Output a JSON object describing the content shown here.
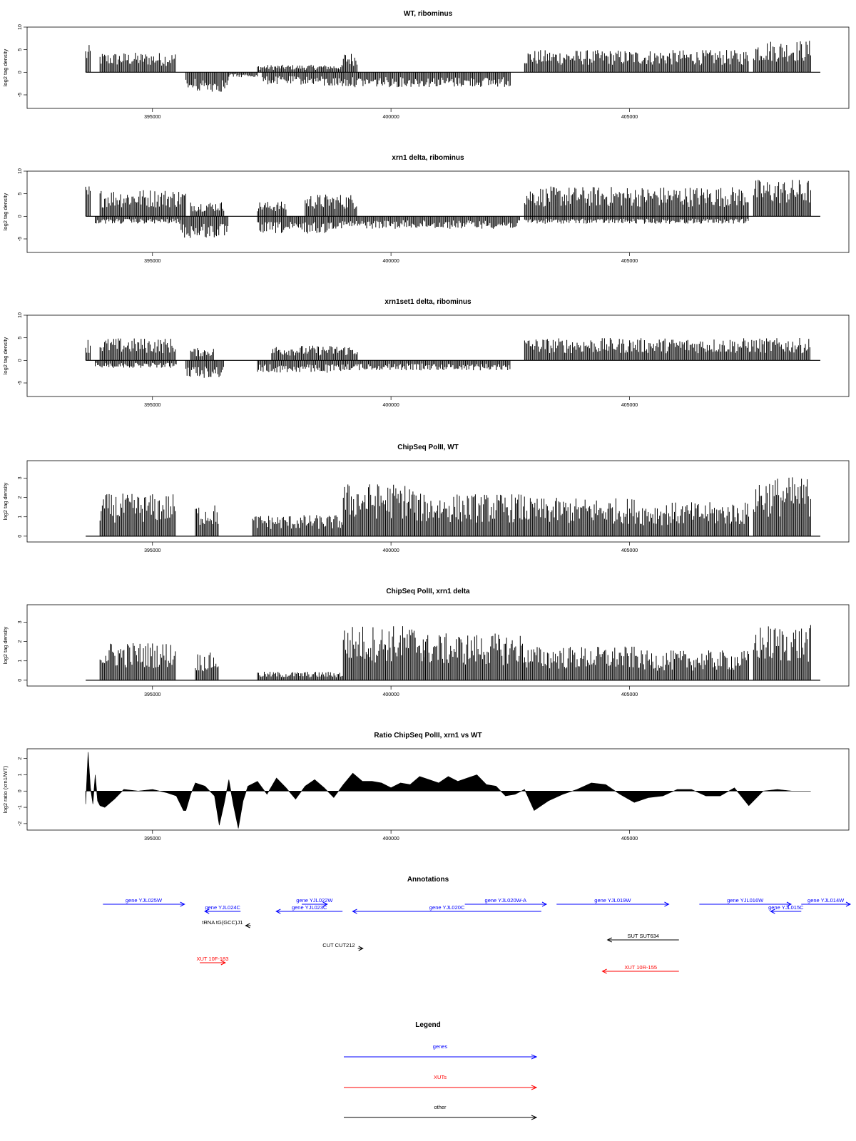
{
  "chart_data": [
    {
      "type": "bar",
      "title": "WT, ribominus",
      "ylabel": "log2 tag density",
      "ylim": [
        -8,
        10
      ],
      "yticks": [
        -5,
        0,
        5,
        10
      ],
      "xlim": [
        393000,
        409000
      ],
      "xticks": [
        395000,
        400000,
        405000
      ],
      "markers": [
        410150,
        410420
      ],
      "series": [
        {
          "name": "plus strand",
          "segments": [
            [
              393600,
              393700,
              5.5
            ],
            [
              393900,
              395500,
              4
            ],
            [
              397200,
              399000,
              1.5
            ],
            [
              399000,
              399300,
              4
            ],
            [
              402800,
              407500,
              4.5
            ],
            [
              407600,
              408800,
              6.5
            ]
          ]
        },
        {
          "name": "minus strand",
          "segments": [
            [
              395700,
              396600,
              -4
            ],
            [
              396600,
              397200,
              -1
            ],
            [
              397300,
              398600,
              -2.5
            ],
            [
              398600,
              402500,
              -3
            ]
          ]
        }
      ]
    },
    {
      "type": "bar",
      "title": "xrn1 delta, ribominus",
      "ylabel": "log2 tag density",
      "ylim": [
        -8,
        10
      ],
      "yticks": [
        -5,
        0,
        5,
        10
      ],
      "xlim": [
        393000,
        409000
      ],
      "xticks": [
        395000,
        400000,
        405000
      ],
      "markers": [
        410150,
        410420
      ],
      "series": [
        {
          "name": "plus strand",
          "segments": [
            [
              393600,
              393700,
              6.5
            ],
            [
              393900,
              395700,
              5.5
            ],
            [
              395800,
              396500,
              3
            ],
            [
              397200,
              397800,
              3
            ],
            [
              398200,
              399300,
              4.5
            ],
            [
              402800,
              407500,
              6
            ],
            [
              407600,
              408800,
              7.5
            ]
          ]
        },
        {
          "name": "minus strand",
          "segments": [
            [
              393800,
              395600,
              -1.5
            ],
            [
              395600,
              396600,
              -4.5
            ],
            [
              397200,
              398700,
              -3.5
            ],
            [
              398700,
              402700,
              -2.5
            ],
            [
              402800,
              407500,
              -1.5
            ]
          ]
        }
      ]
    },
    {
      "type": "bar",
      "title": "xrn1set1 delta, ribominus",
      "ylabel": "log2 tag density",
      "ylim": [
        -8,
        10
      ],
      "yticks": [
        -5,
        0,
        5,
        10
      ],
      "xlim": [
        393000,
        409000
      ],
      "xticks": [
        395000,
        400000,
        405000
      ],
      "markers": [
        410150,
        410420
      ],
      "series": [
        {
          "name": "plus strand",
          "segments": [
            [
              393600,
              393700,
              4.5
            ],
            [
              393900,
              395500,
              4.5
            ],
            [
              395800,
              396300,
              2.5
            ],
            [
              397500,
              399300,
              3
            ],
            [
              402800,
              408800,
              4.5
            ]
          ]
        },
        {
          "name": "minus strand",
          "segments": [
            [
              393800,
              395500,
              -1.5
            ],
            [
              395700,
              396500,
              -3.5
            ],
            [
              397200,
              399000,
              -2.5
            ],
            [
              399000,
              402500,
              -2
            ]
          ]
        }
      ]
    },
    {
      "type": "bar",
      "title": "ChipSeq PolII, WT",
      "ylabel": "log2 tag density",
      "ylim": [
        -0.3,
        3.9
      ],
      "yticks": [
        0,
        1,
        2,
        3
      ],
      "xlim": [
        393000,
        409000
      ],
      "xticks": [
        395000,
        400000,
        405000
      ],
      "markers": [
        410150,
        410420
      ],
      "series": [
        {
          "name": "signal",
          "segments": [
            [
              393900,
              395500,
              2
            ],
            [
              395900,
              396400,
              1.5
            ],
            [
              397100,
              399000,
              1
            ],
            [
              399000,
              400500,
              2.5
            ],
            [
              400500,
              402800,
              2
            ],
            [
              402800,
              405200,
              1.8
            ],
            [
              405200,
              407500,
              1.6
            ],
            [
              407600,
              408800,
              2.8
            ]
          ]
        }
      ]
    },
    {
      "type": "bar",
      "title": "ChipSeq PolII, xrn1 delta",
      "ylabel": "log2 tag density",
      "ylim": [
        -0.3,
        3.9
      ],
      "yticks": [
        0,
        1,
        2,
        3
      ],
      "xlim": [
        393000,
        409000
      ],
      "xticks": [
        395000,
        400000,
        405000
      ],
      "markers": [
        410150,
        410420
      ],
      "series": [
        {
          "name": "signal",
          "segments": [
            [
              393900,
              395500,
              1.8
            ],
            [
              395900,
              396400,
              1.3
            ],
            [
              397200,
              399000,
              0.4
            ],
            [
              399000,
              400700,
              2.6
            ],
            [
              400700,
              402800,
              2.2
            ],
            [
              402800,
              405200,
              1.6
            ],
            [
              405200,
              407500,
              1.4
            ],
            [
              407600,
              408800,
              2.6
            ]
          ]
        }
      ]
    },
    {
      "type": "area",
      "title": "Ratio ChipSeq PolII, xrn1 vs WT",
      "ylabel": "log2 ratio (xrn1/WT)",
      "ylim": [
        -2.4,
        2.6
      ],
      "yticks": [
        -2,
        -1,
        0,
        1,
        2
      ],
      "xlim": [
        393000,
        409000
      ],
      "xticks": [
        395000,
        400000,
        405000
      ],
      "markers": [
        410150,
        410420
      ],
      "series": [
        {
          "name": "ratio",
          "x": [
            393600,
            393650,
            393700,
            393750,
            393800,
            393850,
            393900,
            394000,
            394200,
            394400,
            394700,
            395000,
            395300,
            395500,
            395650,
            395700,
            395800,
            395900,
            396100,
            396300,
            396400,
            396500,
            396600,
            396700,
            396800,
            396900,
            397000,
            397200,
            397400,
            397600,
            397800,
            398000,
            398200,
            398400,
            398600,
            398800,
            399000,
            399200,
            399400,
            399600,
            399800,
            400000,
            400200,
            400400,
            400600,
            400800,
            401000,
            401200,
            401400,
            401600,
            401800,
            402000,
            402200,
            402400,
            402600,
            402800,
            403000,
            403300,
            403600,
            403900,
            404200,
            404500,
            404800,
            405100,
            405400,
            405700,
            406000,
            406300,
            406600,
            406900,
            407200,
            407500,
            407800,
            408100,
            408400,
            408800
          ],
          "y": [
            -0.8,
            2.4,
            0.2,
            -0.8,
            1.0,
            -0.6,
            -0.9,
            -1.0,
            -0.5,
            0.1,
            0.0,
            0.1,
            -0.1,
            -0.3,
            -1.2,
            -1.2,
            -0.2,
            0.5,
            0.3,
            -0.3,
            -2.1,
            -0.8,
            0.7,
            -0.9,
            -2.3,
            -0.6,
            0.3,
            0.6,
            -0.2,
            0.8,
            0.2,
            -0.5,
            0.3,
            0.7,
            0.2,
            -0.4,
            0.4,
            1.1,
            0.6,
            0.6,
            0.5,
            0.2,
            0.5,
            0.4,
            0.9,
            0.7,
            0.5,
            0.9,
            0.6,
            0.8,
            1.0,
            0.4,
            0.3,
            -0.3,
            -0.2,
            0.1,
            -1.2,
            -0.6,
            -0.2,
            0.1,
            0.5,
            0.4,
            -0.2,
            -0.7,
            -0.4,
            -0.3,
            0.1,
            0.1,
            -0.3,
            -0.3,
            0.2,
            -0.9,
            0.0,
            0.1,
            0.0,
            0.0
          ]
        }
      ]
    }
  ],
  "annotations": {
    "title": "Annotations",
    "features": [
      {
        "label": "gene YJL025W",
        "start": 393900,
        "end": 395500,
        "strand": "+",
        "color": "#0000ff",
        "row": 0,
        "label_side": "above"
      },
      {
        "label": "gene YJL024C",
        "start": 395900,
        "end": 396600,
        "strand": "-",
        "color": "#0000ff",
        "row": 1,
        "label_side": "above"
      },
      {
        "label": "gene YJL022W",
        "start": 397800,
        "end": 398300,
        "strand": "+",
        "color": "#0000ff",
        "row": 0,
        "label_side": "above"
      },
      {
        "label": "gene YJL023C",
        "start": 397300,
        "end": 398600,
        "strand": "-",
        "color": "#0000ff",
        "row": 1,
        "label_side": "above"
      },
      {
        "label": "gene YJL020W-A",
        "start": 401000,
        "end": 402600,
        "strand": "+",
        "color": "#0000ff",
        "row": 0,
        "label_side": "above"
      },
      {
        "label": "gene YJL020C",
        "start": 398800,
        "end": 402500,
        "strand": "-",
        "color": "#0000ff",
        "row": 1,
        "label_side": "above"
      },
      {
        "label": "gene YJL019W",
        "start": 402800,
        "end": 405000,
        "strand": "+",
        "color": "#0000ff",
        "row": 0,
        "label_side": "above"
      },
      {
        "label": "gene YJL016W",
        "start": 405600,
        "end": 407400,
        "strand": "+",
        "color": "#0000ff",
        "row": 0,
        "label_side": "above"
      },
      {
        "label": "gene YJL015C",
        "start": 407000,
        "end": 407600,
        "strand": "-",
        "color": "#0000ff",
        "row": 1,
        "label_side": "above"
      },
      {
        "label": "gene YJL014W",
        "start": 407600,
        "end": 409000,
        "strand": "+",
        "color": "#0000ff",
        "row": 0,
        "label_side": "above"
      },
      {
        "label": "tRNA tG(GCC)J1",
        "start": 396700,
        "end": 396800,
        "strand": "-",
        "color": "#000000",
        "row": 2,
        "label_side": "left"
      },
      {
        "label": "CUT CUT212",
        "start": 398900,
        "end": 399000,
        "strand": "+",
        "color": "#000000",
        "row": 3,
        "label_side": "left"
      },
      {
        "label": "SUT SUT634",
        "start": 403800,
        "end": 405200,
        "strand": "-",
        "color": "#000000",
        "row": 4,
        "label_side": "above"
      },
      {
        "label": "XUT 10F-183",
        "start": 395800,
        "end": 396300,
        "strand": "+",
        "color": "#ff0000",
        "row": 5,
        "label_side": "above"
      },
      {
        "label": "XUT 10R-155",
        "start": 403700,
        "end": 405200,
        "strand": "-",
        "color": "#ff0000",
        "row": 6,
        "label_side": "above"
      }
    ]
  },
  "legend": {
    "title": "Legend",
    "items": [
      {
        "label": "genes",
        "color": "#0000ff"
      },
      {
        "label": "XUTs",
        "color": "#ff0000"
      },
      {
        "label": "other",
        "color": "#000000"
      }
    ]
  }
}
